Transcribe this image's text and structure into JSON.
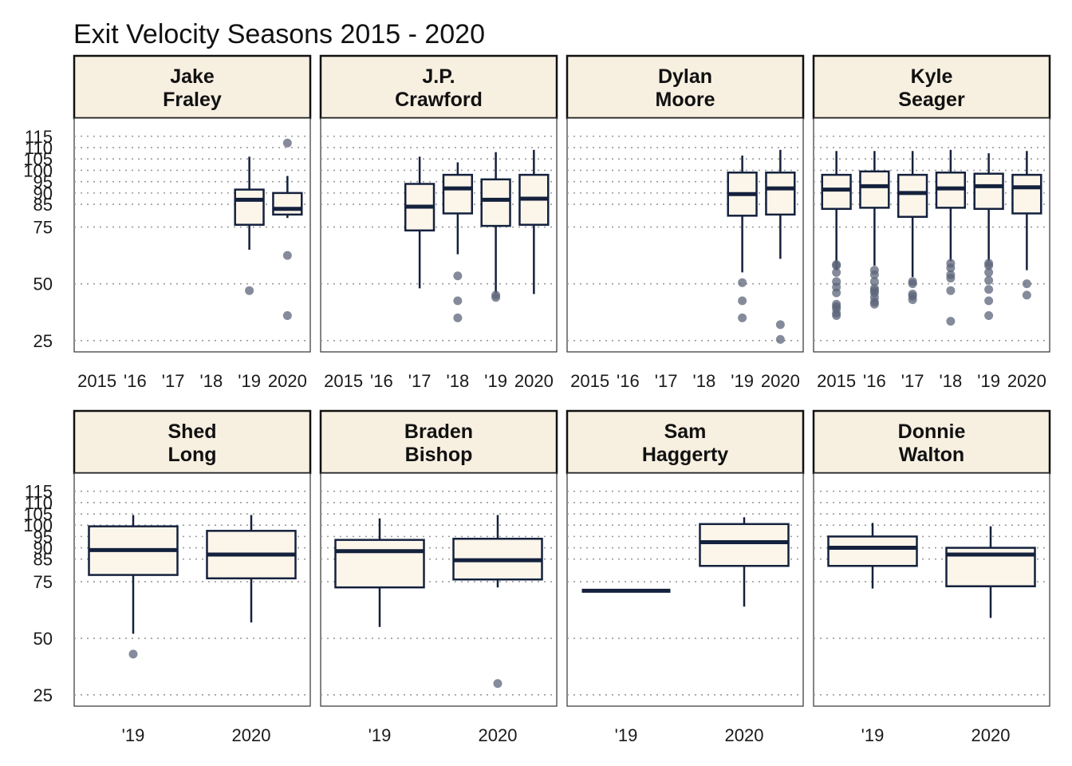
{
  "chart_data": {
    "type": "boxplot",
    "title": "Exit Velocity Seasons 2015 - 2020",
    "xlabel": "",
    "ylabel": "",
    "ylim": [
      20,
      123
    ],
    "yticks": [
      25,
      50,
      75,
      85,
      90,
      95,
      100,
      105,
      110,
      115
    ],
    "grid": "horizontal dotted",
    "colors": {
      "box_line": "#14213d",
      "box_fill": "#fcf5ea",
      "strip_fill": "#f7efe0",
      "outlier": "#5c6478",
      "grid": "#9a9a9a"
    },
    "rows": [
      {
        "x_ticks": [
          "2015",
          "'16",
          "'17",
          "'18",
          "'19",
          "2020"
        ],
        "panels": [
          {
            "player": "Jake\nFraley",
            "boxes": [
              {
                "x": "'19",
                "whisker_low": 65,
                "q1": 76,
                "median": 87,
                "q3": 91.5,
                "whisker_high": 106,
                "outliers": [
                  47
                ]
              },
              {
                "x": "2020",
                "whisker_low": 79,
                "q1": 80.5,
                "median": 83,
                "q3": 90,
                "whisker_high": 97.5,
                "outliers": [
                  112,
                  62.5,
                  36
                ]
              }
            ]
          },
          {
            "player": "J.P.\nCrawford",
            "boxes": [
              {
                "x": "'17",
                "whisker_low": 48,
                "q1": 73.5,
                "median": 84,
                "q3": 94,
                "whisker_high": 106,
                "outliers": []
              },
              {
                "x": "'18",
                "whisker_low": 63,
                "q1": 81,
                "median": 92,
                "q3": 98,
                "whisker_high": 103.5,
                "outliers": [
                  53.5,
                  42.5,
                  35
                ]
              },
              {
                "x": "'19",
                "whisker_low": 46,
                "q1": 75.5,
                "median": 87,
                "q3": 96,
                "whisker_high": 108,
                "outliers": [
                  45,
                  44
                ]
              },
              {
                "x": "2020",
                "whisker_low": 45.5,
                "q1": 76,
                "median": 87.5,
                "q3": 98,
                "whisker_high": 109,
                "outliers": []
              }
            ]
          },
          {
            "player": "Dylan\nMoore",
            "boxes": [
              {
                "x": "'19",
                "whisker_low": 55,
                "q1": 80,
                "median": 89.5,
                "q3": 99,
                "whisker_high": 106.5,
                "outliers": [
                  50.5,
                  42.5,
                  35
                ]
              },
              {
                "x": "2020",
                "whisker_low": 61,
                "q1": 80.5,
                "median": 92,
                "q3": 99,
                "whisker_high": 109,
                "outliers": [
                  32,
                  25.5
                ]
              }
            ]
          },
          {
            "player": "Kyle\nSeager",
            "boxes": [
              {
                "x": "2015",
                "whisker_low": 56,
                "q1": 83,
                "median": 91.5,
                "q3": 98,
                "whisker_high": 108.5,
                "outliers": [
                  58.5,
                  58,
                  55,
                  51,
                  48.5,
                  46,
                  41,
                  40,
                  39,
                  37,
                  36
                ]
              },
              {
                "x": "'16",
                "whisker_low": 58,
                "q1": 83.5,
                "median": 93,
                "q3": 99.5,
                "whisker_high": 108.5,
                "outliers": [
                  56,
                  54,
                  51,
                  48,
                  47,
                  46,
                  44,
                  42,
                  41
                ]
              },
              {
                "x": "'17",
                "whisker_low": 53,
                "q1": 79.5,
                "median": 90,
                "q3": 98,
                "whisker_high": 108.5,
                "outliers": [
                  51,
                  50,
                  45.5,
                  44.5,
                  43
                ]
              },
              {
                "x": "'18",
                "whisker_low": 60,
                "q1": 83.5,
                "median": 92,
                "q3": 99,
                "whisker_high": 109,
                "outliers": [
                  59,
                  57,
                  54,
                  52.5,
                  47,
                  33.5
                ]
              },
              {
                "x": "'19",
                "whisker_low": 60,
                "q1": 83,
                "median": 93,
                "q3": 98.5,
                "whisker_high": 107.5,
                "outliers": [
                  59,
                  58,
                  55,
                  51.5,
                  47.5,
                  42.5,
                  36
                ]
              },
              {
                "x": "2020",
                "whisker_low": 56,
                "q1": 81,
                "median": 92.5,
                "q3": 98,
                "whisker_high": 108.5,
                "outliers": [
                  50,
                  45
                ]
              }
            ]
          }
        ]
      },
      {
        "x_ticks": [
          "'19",
          "2020"
        ],
        "panels": [
          {
            "player": "Shed\nLong",
            "boxes": [
              {
                "x": "'19",
                "whisker_low": 52,
                "q1": 78,
                "median": 89,
                "q3": 99.5,
                "whisker_high": 104.5,
                "outliers": [
                  43
                ]
              },
              {
                "x": "2020",
                "whisker_low": 57,
                "q1": 76.5,
                "median": 87,
                "q3": 97.5,
                "whisker_high": 104.5,
                "outliers": []
              }
            ]
          },
          {
            "player": "Braden\nBishop",
            "boxes": [
              {
                "x": "'19",
                "whisker_low": 55,
                "q1": 72.5,
                "median": 88.5,
                "q3": 93.5,
                "whisker_high": 103,
                "outliers": []
              },
              {
                "x": "2020",
                "whisker_low": 72.5,
                "q1": 76,
                "median": 84.5,
                "q3": 94,
                "whisker_high": 104.5,
                "outliers": [
                  30
                ]
              }
            ]
          },
          {
            "player": "Sam\nHaggerty",
            "boxes": [
              {
                "x": "'19",
                "whisker_low": 71,
                "q1": 71,
                "median": 71,
                "q3": 71,
                "whisker_high": 71,
                "outliers": []
              },
              {
                "x": "2020",
                "whisker_low": 64,
                "q1": 82,
                "median": 92.5,
                "q3": 100.5,
                "whisker_high": 103.5,
                "outliers": []
              }
            ]
          },
          {
            "player": "Donnie\nWalton",
            "boxes": [
              {
                "x": "'19",
                "whisker_low": 72,
                "q1": 82,
                "median": 90,
                "q3": 95,
                "whisker_high": 101,
                "outliers": []
              },
              {
                "x": "2020",
                "whisker_low": 59,
                "q1": 73,
                "median": 87,
                "q3": 90,
                "whisker_high": 99.5,
                "outliers": []
              }
            ]
          }
        ]
      }
    ]
  }
}
